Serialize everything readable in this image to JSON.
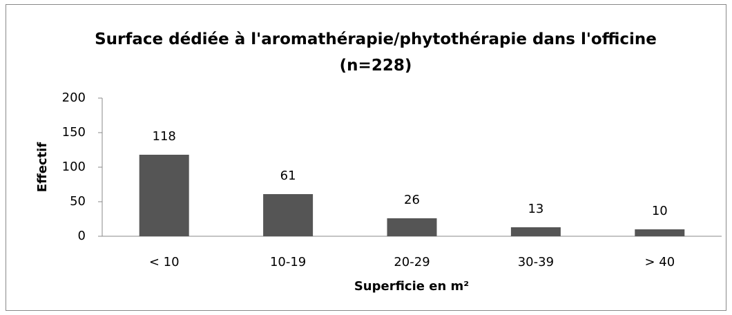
{
  "chart_data": {
    "type": "bar",
    "title": "Surface dédiée à l'aromathérapie/phytothérapie dans l'officine (n=228)",
    "x_label": "Superficie en m²",
    "y_label": "Effectif",
    "categories": [
      "< 10",
      "10-19",
      "20-29",
      "30-39",
      "> 40"
    ],
    "values": [
      118,
      61,
      26,
      13,
      10
    ],
    "color": "#555555",
    "ylim": [
      0,
      200
    ],
    "yticks": [
      0,
      50,
      100,
      150,
      200
    ],
    "grid": false
  }
}
